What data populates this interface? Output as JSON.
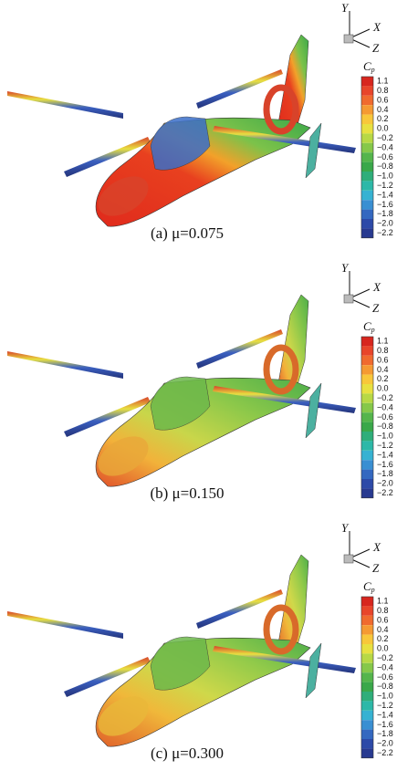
{
  "panels": [
    {
      "caption": "(a) μ=0.075"
    },
    {
      "caption": "(b) μ=0.150"
    },
    {
      "caption": "(c) μ=0.300"
    }
  ],
  "axes": {
    "y": "Y",
    "x": "X",
    "z": "Z"
  },
  "colorbar": {
    "symbol": "C",
    "subscript": "p",
    "ticks": [
      "1.1",
      "0.8",
      "0.6",
      "0.4",
      "0.2",
      "0.0",
      "−0.2",
      "−0.4",
      "−0.6",
      "−0.8",
      "−1.0",
      "−1.2",
      "−1.4",
      "−1.6",
      "−1.8",
      "−2.0",
      "−2.2"
    ]
  }
}
